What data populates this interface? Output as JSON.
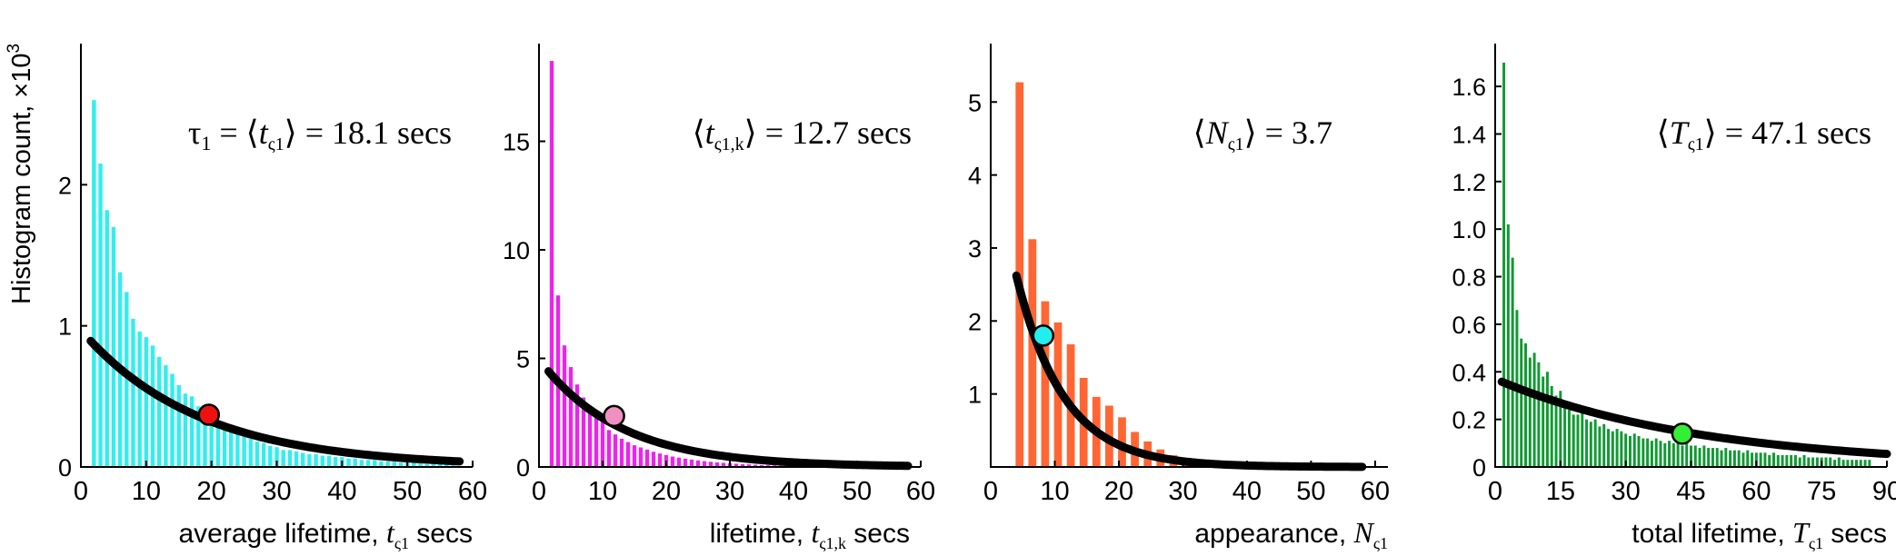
{
  "figure": {
    "y_axis_label": "Histogram count, ×10",
    "y_axis_label_exp": "3"
  },
  "chart_data": [
    {
      "type": "bar",
      "annotation": {
        "prefix": "τ",
        "sub1": "1",
        "mid": " = ⟨",
        "var": "t",
        "sub2": "ς1",
        "suffix": "⟩ = 18.1 secs"
      },
      "xlabel": {
        "text": "average lifetime, ",
        "var": "t",
        "sub": "ς1",
        "suffix": " secs"
      },
      "xlim": [
        0,
        60
      ],
      "ylim": [
        0,
        3
      ],
      "xticks": [
        "0",
        "10",
        "20",
        "30",
        "40",
        "50",
        "60"
      ],
      "yticks": [
        "0",
        "1",
        "2"
      ],
      "bar_color": "#33eeee",
      "bins": {
        "start": 2,
        "step": 1,
        "values": [
          2.6,
          2.15,
          1.82,
          1.7,
          1.38,
          1.24,
          1.05,
          0.96,
          0.92,
          0.86,
          0.78,
          0.72,
          0.66,
          0.58,
          0.52,
          0.5,
          0.43,
          0.4,
          0.34,
          0.32,
          0.28,
          0.27,
          0.24,
          0.22,
          0.2,
          0.18,
          0.17,
          0.15,
          0.14,
          0.12,
          0.12,
          0.11,
          0.1,
          0.09,
          0.09,
          0.08,
          0.08,
          0.07,
          0.07,
          0.06,
          0.06,
          0.05,
          0.05,
          0.05,
          0.04,
          0.04,
          0.04,
          0.03,
          0.03,
          0.03,
          0.03,
          0.02,
          0.02,
          0.02,
          0.02,
          0.02
        ]
      },
      "fit": {
        "A": 0.97,
        "tau": 18.1,
        "x_from": 1.5,
        "x_to": 58
      },
      "marker": {
        "x": 19.6,
        "y": 0.37,
        "color": "#ee1111"
      }
    },
    {
      "type": "bar",
      "annotation": {
        "prefix": "",
        "sub1": "",
        "mid": "⟨",
        "var": "t",
        "sub2": "ς1,k",
        "suffix": "⟩ = 12.7 secs"
      },
      "xlabel": {
        "text": "lifetime, ",
        "var": "t",
        "sub": "ς1,k",
        "suffix": " secs"
      },
      "xlim": [
        0,
        60
      ],
      "ylim": [
        0,
        19.5
      ],
      "xticks": [
        "0",
        "10",
        "20",
        "30",
        "40",
        "50",
        "60"
      ],
      "yticks": [
        "0",
        "5",
        "10",
        "15"
      ],
      "bar_color": "#ee22ee",
      "bins": {
        "start": 2,
        "step": 1,
        "values": [
          18.7,
          7.9,
          5.6,
          4.6,
          3.8,
          3.2,
          2.8,
          2.4,
          2.1,
          1.7,
          1.5,
          1.3,
          1.15,
          1.0,
          0.9,
          0.8,
          0.7,
          0.62,
          0.55,
          0.48,
          0.43,
          0.38,
          0.34,
          0.3,
          0.27,
          0.24,
          0.21,
          0.19,
          0.17,
          0.15,
          0.13,
          0.12,
          0.1,
          0.09,
          0.08,
          0.07,
          0.06,
          0.05,
          0.05,
          0.04,
          0.04,
          0.03,
          0.03,
          0.03,
          0.02,
          0.02,
          0.02,
          0.02,
          0.01,
          0.01,
          0.01,
          0.01,
          0.01,
          0.01,
          0.01,
          0.0
        ]
      },
      "fit": {
        "A": 4.96,
        "tau": 12.7,
        "x_from": 1.5,
        "x_to": 58
      },
      "marker": {
        "x": 11.8,
        "y": 2.35,
        "color": "#f090c0"
      }
    },
    {
      "type": "bar",
      "annotation": {
        "prefix": "",
        "sub1": "",
        "mid": "⟨",
        "var": "N",
        "sub2": "ς1",
        "suffix": "⟩ = 3.7"
      },
      "xlabel": {
        "text": "appearance, ",
        "var": "N",
        "sub": "ς1",
        "suffix": ""
      },
      "xlim": [
        0,
        62
      ],
      "ylim": [
        0,
        5.8
      ],
      "xticks": [
        "0",
        "10",
        "20",
        "30",
        "40",
        "50",
        "60"
      ],
      "yticks": [
        "1",
        "2",
        "3",
        "4",
        "5"
      ],
      "bar_color": "#ff6633",
      "bins": {
        "start": 4.5,
        "step": 2,
        "values": [
          5.27,
          3.12,
          2.27,
          1.98,
          1.68,
          1.22,
          0.96,
          0.84,
          0.68,
          0.48,
          0.35,
          0.24,
          0.16,
          0.1,
          0.06,
          0.04,
          0.02,
          0.01
        ]
      },
      "fit": {
        "A": 4.5,
        "tau": 7.4,
        "x_from": 4,
        "x_to": 58
      },
      "marker": {
        "x": 8.2,
        "y": 1.8,
        "color": "#22eeee"
      }
    },
    {
      "type": "bar",
      "annotation": {
        "prefix": "",
        "sub1": "",
        "mid": "⟨",
        "var": "T",
        "sub2": "ς1",
        "suffix": "⟩ = 47.1 secs"
      },
      "xlabel": {
        "text": "total lifetime, ",
        "var": "T",
        "sub": "ς1",
        "suffix": " secs"
      },
      "xlim": [
        0,
        90
      ],
      "ylim": [
        0,
        1.78
      ],
      "xticks": [
        "0",
        "15",
        "30",
        "45",
        "60",
        "75",
        "90"
      ],
      "yticks": [
        "0",
        "0.2",
        "0.4",
        "0.6",
        "0.8",
        "1.0",
        "1.2",
        "1.4",
        "1.6"
      ],
      "bar_color": "#119933",
      "bins": {
        "start": 2,
        "step": 1,
        "values": [
          1.7,
          1.02,
          0.88,
          0.66,
          0.54,
          0.52,
          0.46,
          0.48,
          0.44,
          0.38,
          0.4,
          0.34,
          0.3,
          0.32,
          0.26,
          0.24,
          0.22,
          0.22,
          0.23,
          0.2,
          0.19,
          0.2,
          0.17,
          0.18,
          0.16,
          0.15,
          0.16,
          0.15,
          0.14,
          0.13,
          0.14,
          0.13,
          0.12,
          0.12,
          0.11,
          0.12,
          0.11,
          0.1,
          0.11,
          0.1,
          0.1,
          0.09,
          0.1,
          0.09,
          0.09,
          0.08,
          0.09,
          0.08,
          0.08,
          0.08,
          0.07,
          0.08,
          0.07,
          0.07,
          0.07,
          0.06,
          0.07,
          0.06,
          0.06,
          0.06,
          0.06,
          0.05,
          0.06,
          0.05,
          0.05,
          0.05,
          0.05,
          0.05,
          0.04,
          0.05,
          0.04,
          0.04,
          0.04,
          0.04,
          0.04,
          0.04,
          0.03,
          0.04,
          0.03,
          0.03,
          0.03,
          0.03,
          0.03,
          0.03,
          0.03
        ]
      },
      "fit": {
        "A": 0.37,
        "tau": 47.1,
        "x_from": 1.5,
        "x_to": 90
      },
      "marker": {
        "x": 43,
        "y": 0.14,
        "color": "#33ee33"
      }
    }
  ]
}
